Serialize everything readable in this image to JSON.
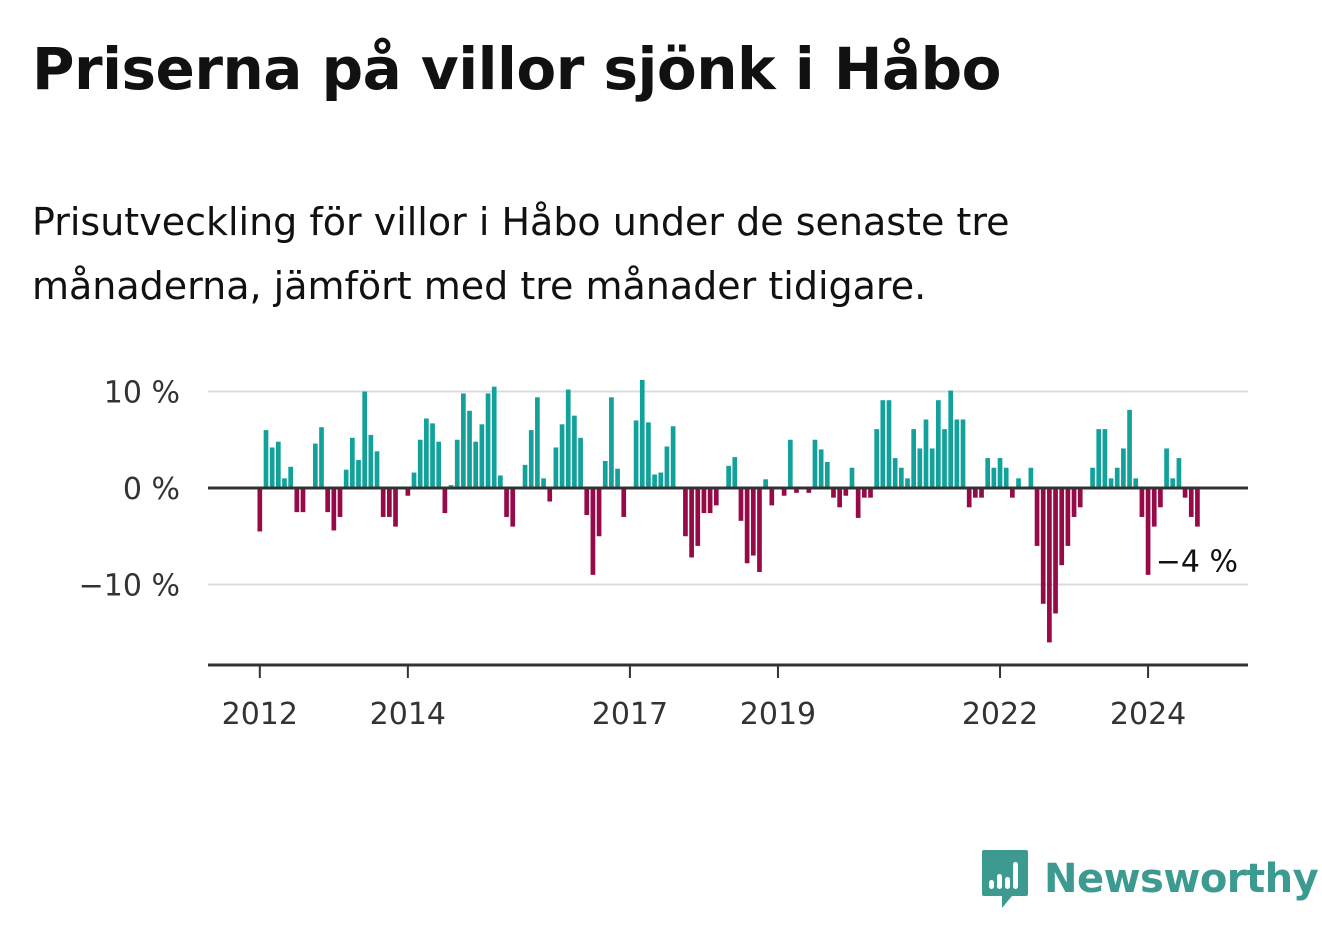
{
  "header": {
    "title": "Priserna på villor sjönk i Håbo",
    "subtitle": "Prisutveckling för villor i Håbo under de senaste tre månaderna, jämfört med tre månader tidigare."
  },
  "chart_data": {
    "type": "bar",
    "title": "Priserna på villor sjönk i Håbo",
    "ylabel": "",
    "xlabel": "",
    "ylim": [
      -18,
      10
    ],
    "y_ticks": [
      {
        "value": 10,
        "label": "10 %"
      },
      {
        "value": 0,
        "label": "0 %"
      },
      {
        "value": -10,
        "label": "−10 %"
      }
    ],
    "x_ticks": [
      {
        "value": 2012.0,
        "label": "2012"
      },
      {
        "value": 2014.0,
        "label": "2014"
      },
      {
        "value": 2017.0,
        "label": "2017"
      },
      {
        "value": 2019.0,
        "label": "2019"
      },
      {
        "value": 2022.0,
        "label": "2022"
      },
      {
        "value": 2024.0,
        "label": "2024"
      }
    ],
    "x_range": [
      2011.3,
      2025.35
    ],
    "start": {
      "year": 2012,
      "month": 1
    },
    "colors": {
      "positive": "#12a29b",
      "negative": "#960a48"
    },
    "last_label": "−4 %",
    "values": [
      -4.5,
      6,
      4.2,
      4.8,
      1,
      2.2,
      -2.5,
      -2.5,
      0,
      4.6,
      6.3,
      -2.5,
      -4.4,
      -3,
      1.9,
      5.2,
      2.9,
      10,
      5.5,
      3.8,
      -3,
      -3,
      -4,
      0,
      -0.8,
      1.6,
      5,
      7.2,
      6.7,
      4.8,
      -2.6,
      0.3,
      5,
      9.8,
      8,
      4.8,
      6.6,
      9.8,
      10.5,
      1.3,
      -3,
      -4,
      0,
      2.4,
      6,
      9.4,
      1,
      -1.4,
      4.2,
      6.6,
      10.2,
      7.5,
      5.2,
      -2.8,
      -9,
      -5,
      2.8,
      9.4,
      2,
      -3,
      0,
      7,
      11.2,
      6.8,
      1.4,
      1.6,
      4.3,
      6.4,
      0,
      -5,
      -7.2,
      -6,
      -2.6,
      -2.6,
      -1.8,
      0,
      2.3,
      3.2,
      -3.4,
      -7.8,
      -7,
      -8.7,
      0.9,
      -1.8,
      0,
      -0.8,
      5,
      -0.5,
      0,
      -0.5,
      5,
      4,
      2.7,
      -1,
      -2,
      -0.8,
      2.1,
      -3.1,
      -1,
      -1,
      6.1,
      9.1,
      9.1,
      3.1,
      2.1,
      1,
      6.1,
      4.1,
      7.1,
      4.1,
      9.1,
      6.1,
      10.1,
      7.1,
      7.1,
      -2,
      -1,
      -1,
      3.1,
      2.1,
      3.1,
      2.1,
      -1,
      1,
      0,
      2.1,
      -6,
      -12,
      -16,
      -13,
      -8,
      -6,
      -3,
      -2,
      0,
      2.1,
      6.1,
      6.1,
      1,
      2.1,
      4.1,
      8.1,
      1,
      -3,
      -9,
      -4,
      -2,
      4.1,
      1,
      3.1,
      -1,
      -3,
      -4
    ]
  },
  "branding": {
    "logo_text": "Newsworthy",
    "logo_color": "#3c9a91",
    "logo_icon": "bar-chart-speech-bubble-icon"
  }
}
